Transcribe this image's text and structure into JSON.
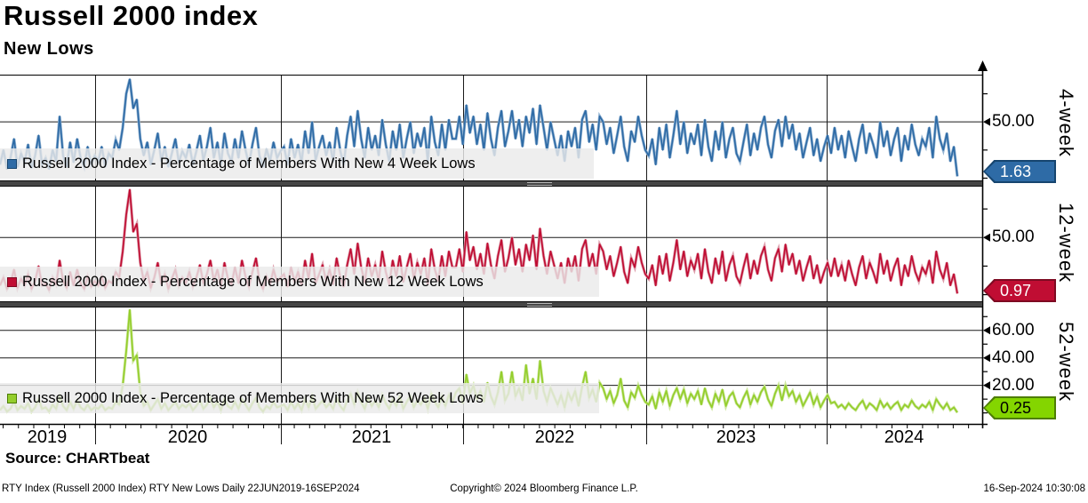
{
  "header": {
    "title": "Russell 2000 index",
    "subtitle": "New Lows"
  },
  "source_line": "Source: CHARTbeat",
  "footer": {
    "left": "RTY Index (Russell 2000 Index) RTY New Lows  Daily 22JUN2019-16SEP2024",
    "center": "Copyright© 2024 Bloomberg Finance L.P.",
    "right": "16-Sep-2024 10:30:08"
  },
  "chart_data": {
    "type": "line",
    "title": "Russell 2000 index",
    "subtitle": "New Lows",
    "x": {
      "start_label": "22JUN2019",
      "end_label": "16SEP2024",
      "frequency": "Daily (weekly-sampled values below)",
      "year_ticks": [
        "2019",
        "2020",
        "2021",
        "2022",
        "2023",
        "2024"
      ]
    },
    "panels": [
      {
        "name": "4-week",
        "legend": "Russell 2000 Index - Percentage of Members With New 4 Week Lows",
        "color": "#2e6ba6",
        "halo_color": "#93b3d2",
        "tag_bg": "#2e6ba6",
        "tag_border": "#16456f",
        "tag_text_color": "#ffffff",
        "last_value": 1.63,
        "last_value_label": "1.63",
        "ylim": [
          -2,
          92
        ],
        "yticks": [
          {
            "v": 50,
            "label": "50.00"
          }
        ],
        "minor_tick_step": 25,
        "values": [
          12,
          25,
          8,
          18,
          35,
          10,
          22,
          14,
          30,
          9,
          20,
          38,
          12,
          18,
          8,
          25,
          15,
          55,
          20,
          10,
          32,
          14,
          35,
          18,
          10,
          28,
          12,
          20,
          15,
          28,
          10,
          22,
          18,
          34,
          25,
          45,
          75,
          88,
          62,
          70,
          35,
          20,
          32,
          12,
          25,
          40,
          15,
          28,
          10,
          22,
          35,
          14,
          24,
          18,
          30,
          12,
          24,
          38,
          16,
          28,
          45,
          18,
          32,
          12,
          40,
          22,
          15,
          35,
          18,
          42,
          25,
          12,
          30,
          45,
          20,
          10,
          26,
          15,
          32,
          18,
          24,
          28,
          12,
          35,
          18,
          30,
          14,
          42,
          22,
          50,
          16,
          28,
          38,
          20,
          32,
          15,
          45,
          25,
          12,
          38,
          55,
          28,
          60,
          35,
          18,
          45,
          25,
          38,
          20,
          52,
          30,
          15,
          42,
          25,
          48,
          18,
          35,
          50,
          22,
          40,
          28,
          45,
          15,
          55,
          32,
          20,
          48,
          25,
          52,
          35,
          35,
          55,
          30,
          65,
          40,
          55,
          30,
          48,
          25,
          58,
          35,
          20,
          45,
          60,
          28,
          42,
          60,
          35,
          52,
          28,
          55,
          40,
          62,
          30,
          65,
          45,
          25,
          50,
          35,
          20,
          38,
          15,
          42,
          28,
          45,
          18,
          52,
          60,
          32,
          48,
          25,
          55,
          50,
          30,
          45,
          22,
          38,
          55,
          28,
          15,
          42,
          32,
          55,
          38,
          25,
          20,
          35,
          12,
          45,
          25,
          48,
          18,
          38,
          60,
          30,
          50,
          22,
          40,
          30,
          48,
          20,
          52,
          28,
          15,
          42,
          25,
          50,
          18,
          35,
          45,
          22,
          15,
          32,
          48,
          20,
          40,
          25,
          45,
          55,
          30,
          18,
          42,
          52,
          28,
          55,
          35,
          48,
          25,
          40,
          18,
          32,
          45,
          20,
          35,
          15,
          28,
          38,
          22,
          45,
          25,
          38,
          18,
          42,
          28,
          15,
          35,
          48,
          22,
          40,
          30,
          18,
          50,
          28,
          42,
          20,
          35,
          45,
          15,
          38,
          25,
          48,
          30,
          20,
          35,
          28,
          45,
          18,
          55,
          35,
          25,
          40,
          15,
          28,
          1.63
        ]
      },
      {
        "name": "12-week",
        "legend": "Russell 2000 Index - Percentage of Members With New 12 Week Lows",
        "color": "#c00d33",
        "halo_color": "#dd9dab",
        "tag_bg": "#c00d33",
        "tag_border": "#7d0a22",
        "tag_text_color": "#ffffff",
        "last_value": 0.97,
        "last_value_label": "0.97",
        "ylim": [
          -5,
          93
        ],
        "yticks": [
          {
            "v": 50,
            "label": "50.00"
          }
        ],
        "minor_tick_step": 25,
        "values": [
          8,
          15,
          5,
          10,
          22,
          6,
          14,
          8,
          18,
          5,
          12,
          25,
          8,
          10,
          4,
          15,
          9,
          30,
          12,
          6,
          20,
          8,
          22,
          10,
          5,
          16,
          7,
          12,
          8,
          16,
          6,
          12,
          10,
          20,
          15,
          38,
          70,
          92,
          55,
          62,
          28,
          12,
          20,
          6,
          15,
          28,
          9,
          18,
          5,
          14,
          22,
          8,
          15,
          10,
          20,
          7,
          15,
          26,
          10,
          18,
          30,
          12,
          22,
          7,
          28,
          14,
          9,
          24,
          10,
          30,
          16,
          7,
          20,
          32,
          12,
          5,
          16,
          9,
          22,
          11,
          15,
          18,
          7,
          24,
          11,
          20,
          8,
          30,
          14,
          36,
          10,
          18,
          26,
          12,
          22,
          9,
          32,
          16,
          7,
          26,
          40,
          18,
          45,
          24,
          11,
          32,
          16,
          26,
          12,
          38,
          20,
          9,
          30,
          16,
          34,
          11,
          24,
          36,
          14,
          28,
          18,
          32,
          9,
          40,
          22,
          12,
          34,
          16,
          38,
          24,
          24,
          40,
          20,
          55,
          30,
          42,
          22,
          36,
          18,
          45,
          26,
          14,
          34,
          48,
          20,
          32,
          50,
          26,
          40,
          20,
          44,
          30,
          52,
          22,
          58,
          34,
          18,
          38,
          26,
          14,
          28,
          10,
          32,
          20,
          34,
          12,
          40,
          48,
          24,
          36,
          18,
          44,
          38,
          22,
          34,
          16,
          28,
          42,
          20,
          10,
          32,
          24,
          42,
          28,
          18,
          14,
          26,
          8,
          34,
          18,
          36,
          12,
          28,
          48,
          22,
          38,
          16,
          30,
          22,
          36,
          14,
          40,
          20,
          10,
          32,
          18,
          38,
          12,
          26,
          34,
          16,
          10,
          24,
          36,
          14,
          30,
          18,
          34,
          42,
          22,
          12,
          32,
          40,
          20,
          44,
          26,
          36,
          18,
          30,
          12,
          24,
          34,
          14,
          26,
          10,
          20,
          28,
          16,
          32,
          16,
          26,
          12,
          30,
          18,
          8,
          24,
          34,
          14,
          28,
          20,
          10,
          36,
          18,
          30,
          12,
          24,
          32,
          8,
          26,
          16,
          34,
          20,
          12,
          24,
          18,
          30,
          10,
          38,
          22,
          14,
          28,
          8,
          18,
          0.97
        ]
      },
      {
        "name": "52-week",
        "legend": "Russell 2000 Index - Percentage of Members With New 52 Week Lows",
        "color": "#94ce2c",
        "halo_color": "#cde79e",
        "tag_bg": "#84d500",
        "tag_border": "#4e7d05",
        "tag_text_color": "#000000",
        "last_value": 0.25,
        "last_value_label": "0.25",
        "ylim": [
          -8,
          76
        ],
        "yticks": [
          {
            "v": 60,
            "label": "60.00"
          },
          {
            "v": 40,
            "label": "40.00"
          },
          {
            "v": 20,
            "label": "20.00"
          }
        ],
        "minor_tick_step": 10,
        "values": [
          2,
          5,
          1,
          3,
          8,
          2,
          5,
          3,
          7,
          1,
          4,
          10,
          3,
          4,
          1,
          6,
          3,
          12,
          5,
          2,
          8,
          3,
          9,
          4,
          2,
          6,
          2,
          4,
          3,
          6,
          2,
          4,
          3,
          8,
          6,
          20,
          45,
          75,
          38,
          42,
          15,
          5,
          8,
          2,
          6,
          10,
          3,
          7,
          2,
          5,
          8,
          3,
          6,
          4,
          7,
          2,
          5,
          9,
          3,
          6,
          11,
          4,
          8,
          2,
          10,
          5,
          3,
          8,
          3,
          10,
          6,
          2,
          7,
          11,
          4,
          1,
          5,
          3,
          8,
          4,
          5,
          6,
          2,
          8,
          3,
          7,
          2,
          10,
          4,
          12,
          3,
          6,
          9,
          4,
          7,
          3,
          11,
          5,
          2,
          9,
          14,
          6,
          15,
          8,
          3,
          11,
          5,
          9,
          4,
          13,
          7,
          3,
          10,
          5,
          12,
          3,
          8,
          12,
          4,
          9,
          6,
          11,
          3,
          14,
          8,
          4,
          12,
          5,
          13,
          8,
          15,
          18,
          7,
          28,
          14,
          20,
          10,
          16,
          8,
          22,
          12,
          6,
          15,
          30,
          9,
          14,
          30,
          12,
          18,
          9,
          35,
          14,
          25,
          10,
          38,
          16,
          8,
          18,
          12,
          6,
          13,
          4,
          15,
          9,
          16,
          5,
          19,
          30,
          11,
          17,
          8,
          22,
          18,
          10,
          16,
          7,
          13,
          25,
          9,
          4,
          15,
          11,
          20,
          13,
          8,
          6,
          12,
          3,
          15,
          8,
          16,
          5,
          13,
          18,
          10,
          17,
          7,
          14,
          10,
          16,
          6,
          18,
          9,
          4,
          14,
          8,
          17,
          5,
          12,
          15,
          7,
          4,
          11,
          16,
          6,
          13,
          8,
          15,
          19,
          10,
          5,
          14,
          20,
          9,
          20,
          12,
          16,
          8,
          13,
          5,
          10,
          15,
          6,
          12,
          4,
          9,
          13,
          7,
          8,
          4,
          6,
          3,
          7,
          4,
          2,
          6,
          9,
          3,
          7,
          5,
          2,
          9,
          4,
          7,
          3,
          6,
          8,
          2,
          6,
          4,
          9,
          5,
          3,
          6,
          4,
          8,
          2,
          10,
          6,
          3,
          7,
          2,
          4,
          0.25
        ]
      }
    ]
  }
}
